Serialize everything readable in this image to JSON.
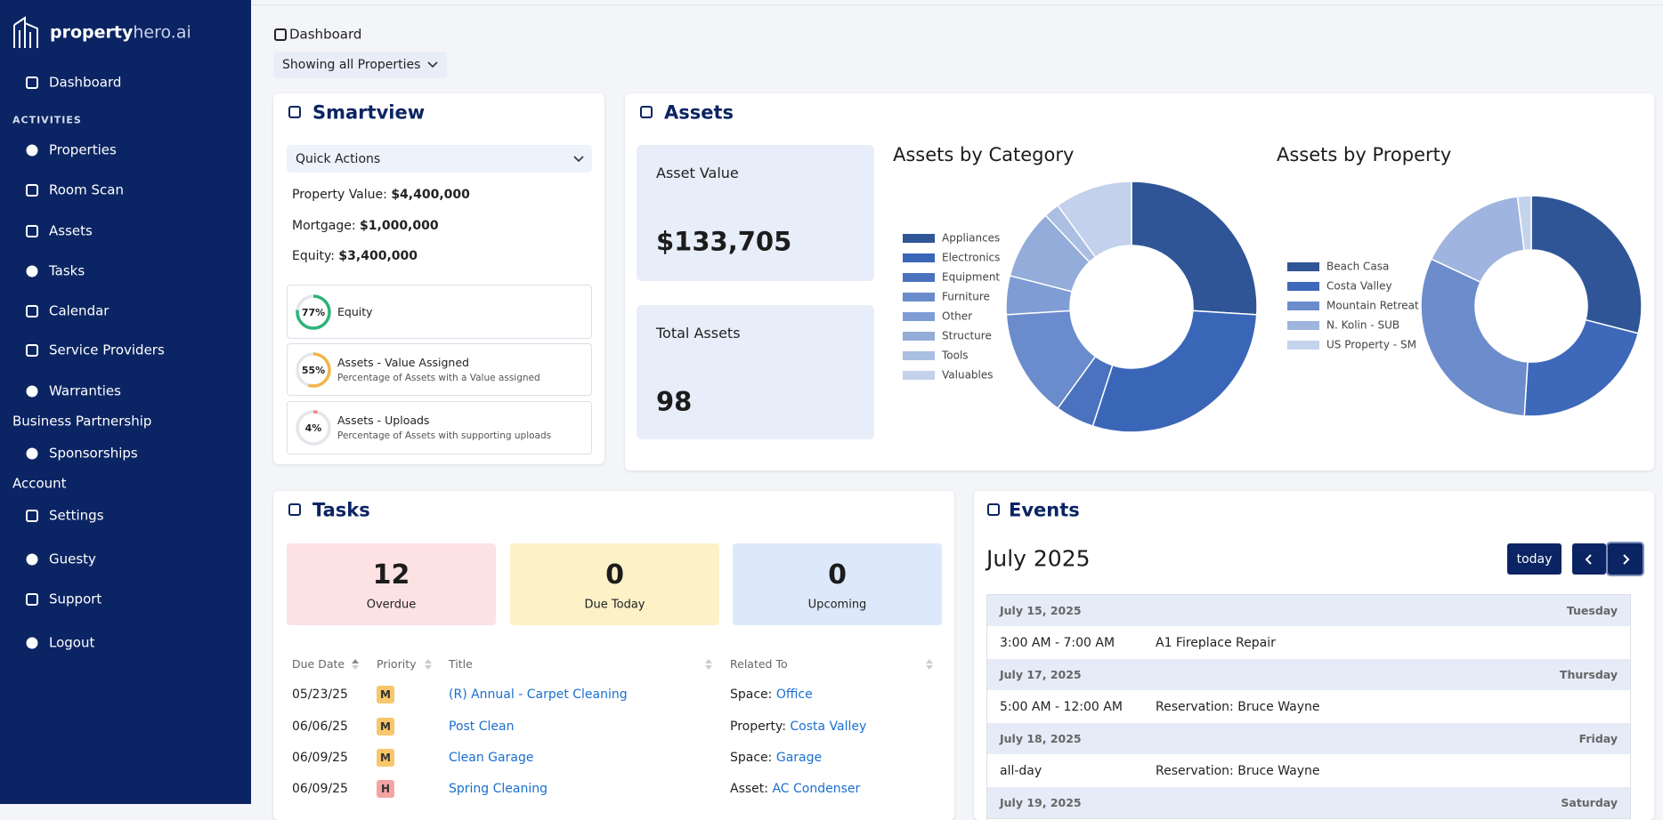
{
  "sidebar": {
    "brand": {
      "first": "property",
      "second": "hero.ai"
    },
    "top": [
      "Dashboard"
    ],
    "activities": {
      "heading": "ACTIVITIES",
      "items": [
        "Properties",
        "Room Scan",
        "Assets",
        "Tasks",
        "Calendar",
        "Service Providers",
        "Warranties"
      ]
    },
    "business": {
      "heading": "Business Partnership",
      "items": [
        "Sponsorships"
      ]
    },
    "account": {
      "heading": "Account",
      "items": [
        "Settings",
        "Guesty",
        "Support",
        "Logout"
      ]
    }
  },
  "breadcrumb": "Dashboard",
  "filter": "Showing all Properties",
  "smartview": {
    "title": "Smartview",
    "quick_actions": "Quick Actions",
    "stats": [
      {
        "label": "Property Value:",
        "value": "$4,400,000"
      },
      {
        "label": "Mortgage:",
        "value": "$1,000,000"
      },
      {
        "label": "Equity:",
        "value": "$3,400,000"
      }
    ],
    "progress": [
      {
        "value": 77,
        "label": "77%",
        "title": "Equity",
        "color": "#2fb37a"
      },
      {
        "value": 55,
        "label": "55%",
        "title": "Assets - Value Assigned",
        "subtitle": "Percentage of Assets with a Value assigned",
        "color": "#f3b54a"
      },
      {
        "value": 4,
        "label": "4%",
        "title": "Assets - Uploads",
        "subtitle": "Percentage of Assets with supporting uploads",
        "color": "#ef8a8a"
      }
    ]
  },
  "assets": {
    "title": "Assets",
    "cards": [
      {
        "label": "Asset Value",
        "value": "$133,705"
      },
      {
        "label": "Total Assets",
        "value": "98"
      }
    ],
    "by_category": {
      "type": "pie",
      "title": "Assets by Category",
      "categories": [
        "Appliances",
        "Electronics",
        "Equipment",
        "Furniture",
        "Other",
        "Structure",
        "Tools",
        "Valuables"
      ],
      "values": [
        26,
        29,
        5,
        14,
        5,
        9,
        2,
        10
      ],
      "colors": [
        "#2f5597",
        "#3a66b8",
        "#4a72bf",
        "#6a8bcc",
        "#7f9dd4",
        "#93acd9",
        "#aabfe2",
        "#c3d1ec"
      ]
    },
    "by_property": {
      "type": "pie",
      "title": "Assets by Property",
      "categories": [
        "Beach Casa",
        "Costa Valley",
        "Mountain Retreat",
        "N. Kolin - SUB",
        "US Property - SM"
      ],
      "values": [
        29,
        22,
        31,
        16,
        2
      ],
      "colors": [
        "#2f5597",
        "#3e68b9",
        "#6d8ccc",
        "#9fb4de",
        "#c6d3ec"
      ]
    }
  },
  "tasks": {
    "title": "Tasks",
    "tiles": [
      {
        "count": 12,
        "label": "Overdue"
      },
      {
        "count": 0,
        "label": "Due Today"
      },
      {
        "count": 0,
        "label": "Upcoming"
      }
    ],
    "columns": [
      "Due Date",
      "Priority",
      "Title",
      "Related To"
    ],
    "rows": [
      {
        "due": "05/23/25",
        "priority": "M",
        "title": "(R) Annual - Carpet Cleaning",
        "related": "Space:",
        "link": "Office"
      },
      {
        "due": "06/06/25",
        "priority": "M",
        "title": "Post Clean",
        "related": "Property:",
        "link": "Costa Valley"
      },
      {
        "due": "06/09/25",
        "priority": "M",
        "title": "Clean Garage",
        "related": "Space:",
        "link": "Garage"
      },
      {
        "due": "06/09/25",
        "priority": "H",
        "title": "Spring Cleaning",
        "related": "Asset:",
        "link": "AC Condenser"
      }
    ]
  },
  "events": {
    "title": "Events",
    "month": "July 2025",
    "today": "today",
    "days": [
      {
        "date": "July 15, 2025",
        "weekday": "Tuesday",
        "events": [
          {
            "time": "3:00 AM - 7:00 AM",
            "title": "A1 Fireplace Repair"
          }
        ]
      },
      {
        "date": "July 17, 2025",
        "weekday": "Thursday",
        "events": [
          {
            "time": "5:00 AM - 12:00 AM",
            "title": "Reservation: Bruce Wayne"
          }
        ]
      },
      {
        "date": "July 18, 2025",
        "weekday": "Friday",
        "events": [
          {
            "time": "all-day",
            "title": "Reservation: Bruce Wayne"
          }
        ]
      },
      {
        "date": "July 19, 2025",
        "weekday": "Saturday",
        "events": []
      }
    ]
  }
}
